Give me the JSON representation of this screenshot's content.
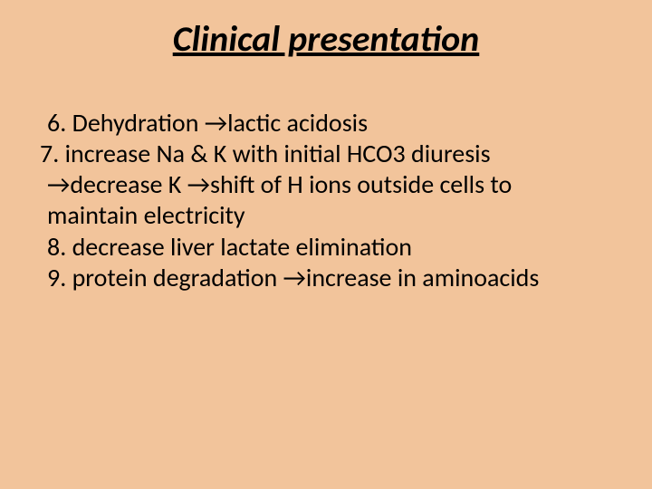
{
  "slide": {
    "title": "Clinical presentation",
    "items": [
      "6. Dehydration →lactic acidosis",
      "7. increase Na & K with initial HCO3 diuresis",
      "→decrease K →shift of H ions outside cells to",
      "maintain electricity",
      "8. decrease liver lactate elimination",
      "9. protein degradation →increase in aminoacids"
    ]
  },
  "style": {
    "background_color": "#f2c49b",
    "text_color": "#000000",
    "title_fontsize": 40,
    "body_fontsize": 28,
    "title_italic": true,
    "title_underline": true,
    "title_bold": true,
    "font_family": "Calibri"
  }
}
